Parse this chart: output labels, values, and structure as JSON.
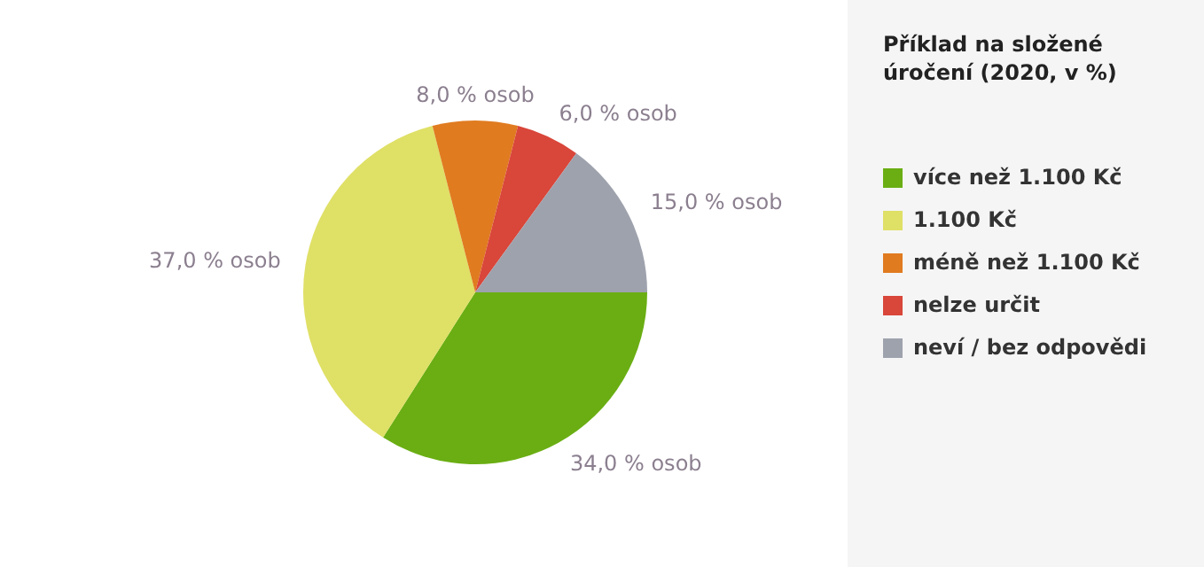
{
  "chart_data": {
    "type": "pie",
    "title": "Příklad na složené úročení (2020, v %)",
    "categories": [
      "více než 1.100 Kč",
      "1.100 Kč",
      "méně než 1.100 Kč",
      "nelze určit",
      "neví / bez odpovědi"
    ],
    "values": [
      34,
      37,
      8,
      6,
      15
    ],
    "colors": [
      "#6aae13",
      "#dfe066",
      "#e07b20",
      "#d9463a",
      "#9ea2ad"
    ],
    "value_labels": [
      "34,0 % osob",
      "37,0 % osob",
      "8,0 % osob",
      "6,0 % osob",
      "15,0 % osob"
    ],
    "legend": "right"
  }
}
